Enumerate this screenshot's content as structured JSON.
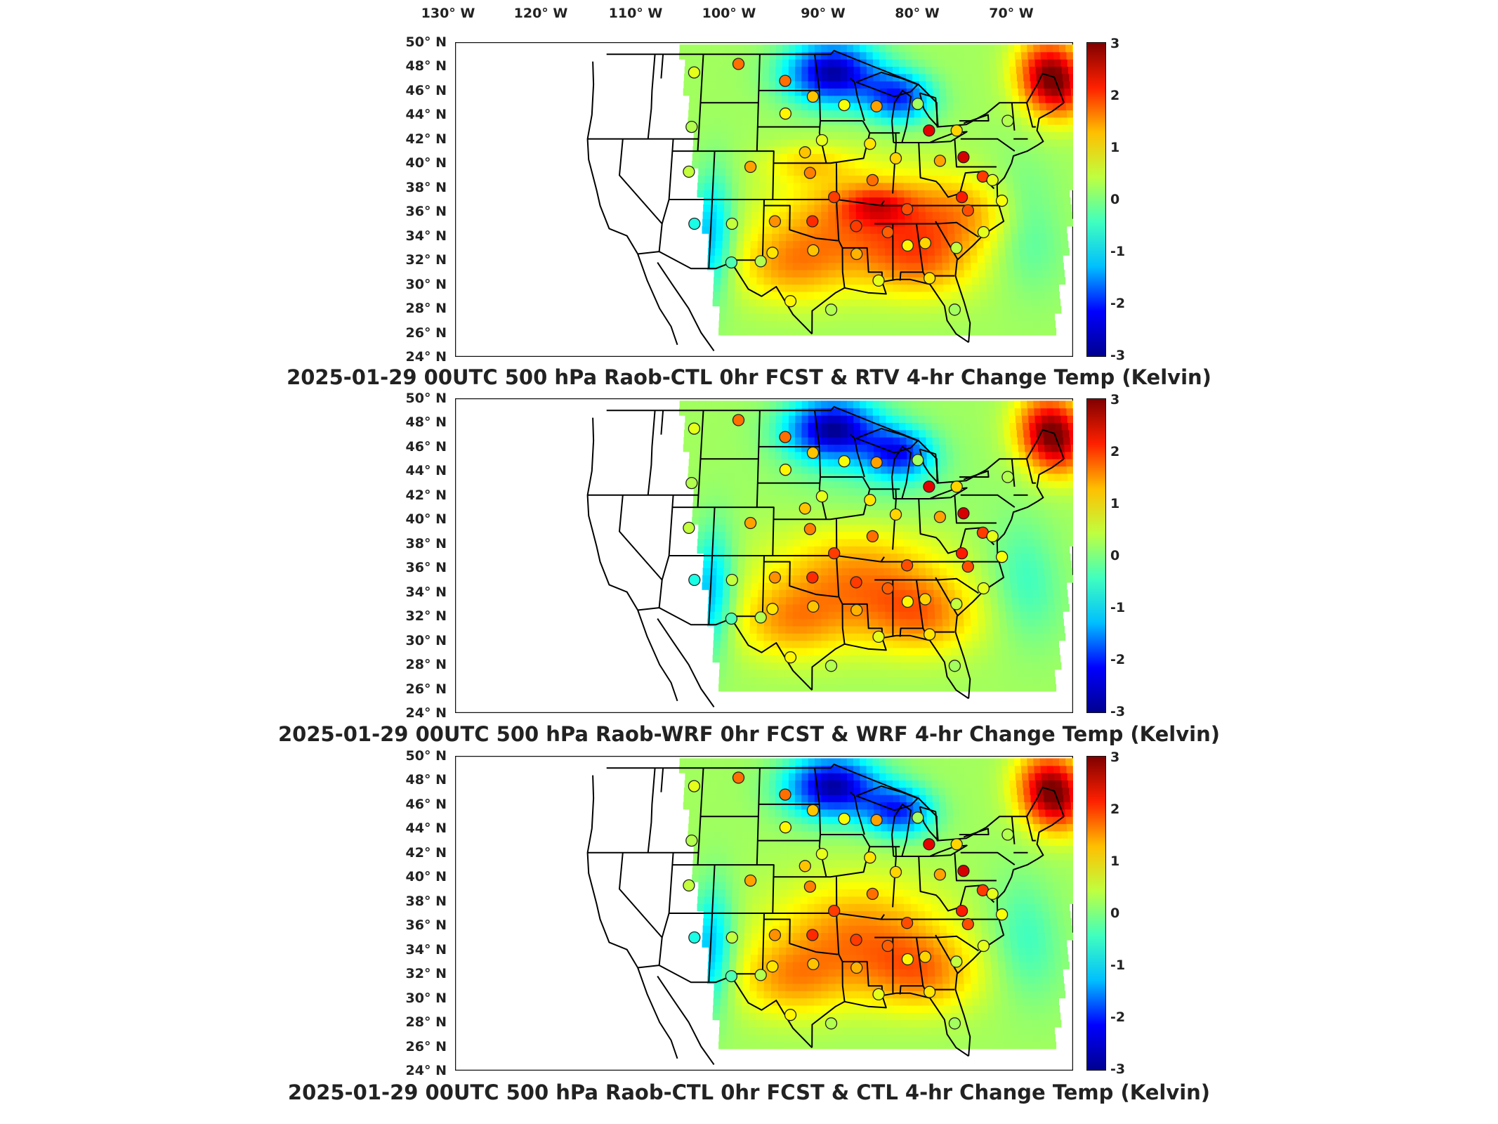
{
  "lon_labels": [
    "130° W",
    "120° W",
    "110° W",
    "100° W",
    "90° W",
    "80° W",
    "70° W"
  ],
  "lat_labels": [
    "50° N",
    "48° N",
    "46° N",
    "44° N",
    "42° N",
    "40° N",
    "38° N",
    "36° N",
    "34° N",
    "32° N",
    "30° N",
    "28° N",
    "26° N",
    "24° N"
  ],
  "colorbar": {
    "ticks": [
      "3",
      "2",
      "1",
      "0",
      "-1",
      "-2",
      "-3"
    ],
    "range": [
      -3,
      3
    ],
    "colormap": "jet",
    "colors": [
      "#00008f",
      "#0000ff",
      "#00bfff",
      "#40ffbf",
      "#bfff40",
      "#ffbf00",
      "#ff2000",
      "#800000"
    ]
  },
  "panels": [
    {
      "title": "2025-01-29 00UTC 500 hPa Raob-CTL 0hr FCST & RTV 4-hr Change Temp (Kelvin)"
    },
    {
      "title": "2025-01-29 00UTC 500 hPa Raob-WRF 0hr FCST & WRF 4-hr Change Temp (Kelvin)"
    },
    {
      "title": "2025-01-29 00UTC 500 hPa Raob-CTL 0hr FCST & CTL 4-hr Change Temp (Kelvin)"
    }
  ],
  "stations": [
    {
      "lon": -112.0,
      "lat": 47.5,
      "val": 0.6
    },
    {
      "lon": -106.6,
      "lat": 48.2,
      "val": 1.6
    },
    {
      "lon": -100.8,
      "lat": 46.8,
      "val": 1.6
    },
    {
      "lon": -97.4,
      "lat": 45.5,
      "val": 1.1
    },
    {
      "lon": -93.6,
      "lat": 44.8,
      "val": 0.7
    },
    {
      "lon": -89.7,
      "lat": 44.7,
      "val": 1.3
    },
    {
      "lon": -84.7,
      "lat": 44.9,
      "val": 0.2
    },
    {
      "lon": -83.5,
      "lat": 42.7,
      "val": 2.4
    },
    {
      "lon": -80.2,
      "lat": 42.7,
      "val": 1.0
    },
    {
      "lon": -74.0,
      "lat": 43.5,
      "val": 0.3
    },
    {
      "lon": -111.9,
      "lat": 43.0,
      "val": 0.3
    },
    {
      "lon": -100.7,
      "lat": 44.1,
      "val": 0.8
    },
    {
      "lon": -98.3,
      "lat": 40.9,
      "val": 1.1
    },
    {
      "lon": -96.3,
      "lat": 41.9,
      "val": 0.6
    },
    {
      "lon": -90.6,
      "lat": 41.6,
      "val": 0.9
    },
    {
      "lon": -87.6,
      "lat": 40.4,
      "val": 1.0
    },
    {
      "lon": -82.4,
      "lat": 40.2,
      "val": 1.3
    },
    {
      "lon": -79.6,
      "lat": 40.5,
      "val": 2.5
    },
    {
      "lon": -77.5,
      "lat": 38.9,
      "val": 1.9
    },
    {
      "lon": -76.4,
      "lat": 38.6,
      "val": 0.6
    },
    {
      "lon": -111.9,
      "lat": 39.3,
      "val": 0.4
    },
    {
      "lon": -104.7,
      "lat": 39.7,
      "val": 1.3
    },
    {
      "lon": -97.7,
      "lat": 39.2,
      "val": 1.5
    },
    {
      "lon": -94.9,
      "lat": 37.2,
      "val": 1.9
    },
    {
      "lon": -90.4,
      "lat": 38.6,
      "val": 1.6
    },
    {
      "lon": -86.5,
      "lat": 36.2,
      "val": 1.8
    },
    {
      "lon": -80.1,
      "lat": 37.2,
      "val": 2.1
    },
    {
      "lon": -79.5,
      "lat": 36.1,
      "val": 1.8
    },
    {
      "lon": -75.5,
      "lat": 36.9,
      "val": 0.7
    },
    {
      "lon": -110.9,
      "lat": 35.0,
      "val": -0.6
    },
    {
      "lon": -106.6,
      "lat": 35.0,
      "val": 0.4
    },
    {
      "lon": -101.7,
      "lat": 35.2,
      "val": 1.4
    },
    {
      "lon": -97.4,
      "lat": 35.2,
      "val": 2.0
    },
    {
      "lon": -101.9,
      "lat": 32.6,
      "val": 0.9
    },
    {
      "lon": -97.3,
      "lat": 32.8,
      "val": 1.1
    },
    {
      "lon": -92.4,
      "lat": 34.8,
      "val": 1.9
    },
    {
      "lon": -92.4,
      "lat": 32.5,
      "val": 1.2
    },
    {
      "lon": -88.8,
      "lat": 34.3,
      "val": 1.7
    },
    {
      "lon": -86.6,
      "lat": 33.2,
      "val": 0.8
    },
    {
      "lon": -84.6,
      "lat": 33.4,
      "val": 1.0
    },
    {
      "lon": -81.1,
      "lat": 33.0,
      "val": 0.4
    },
    {
      "lon": -77.9,
      "lat": 34.3,
      "val": 0.6
    },
    {
      "lon": -106.5,
      "lat": 31.8,
      "val": -0.3
    },
    {
      "lon": -103.2,
      "lat": 31.9,
      "val": 0.3
    },
    {
      "lon": -99.8,
      "lat": 28.6,
      "val": 0.8
    },
    {
      "lon": -95.3,
      "lat": 27.9,
      "val": 0.3
    },
    {
      "lon": -90.0,
      "lat": 30.3,
      "val": 0.6
    },
    {
      "lon": -84.3,
      "lat": 30.5,
      "val": 0.9
    },
    {
      "lon": -81.7,
      "lat": 27.9,
      "val": 0.2
    }
  ]
}
